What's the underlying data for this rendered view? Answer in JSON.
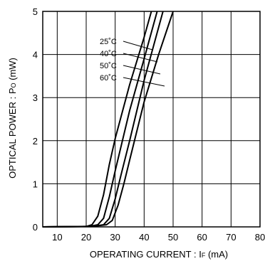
{
  "chart_data": {
    "type": "line",
    "xlabel_main": "OPERATING CURRENT : I",
    "xlabel_sub": "F",
    "xlabel_unit": " (mA)",
    "ylabel_main": "OPTICAL  POWER : P",
    "ylabel_sub": "O",
    "ylabel_unit": " (mW)",
    "xlim": [
      5,
      80
    ],
    "ylim": [
      0,
      5
    ],
    "x_ticks": [
      "10",
      "20",
      "30",
      "40",
      "50",
      "60",
      "70",
      "80"
    ],
    "y_ticks": [
      "0",
      "1",
      "2",
      "3",
      "4",
      "5"
    ],
    "grid": true,
    "series": [
      {
        "name": "25˚C",
        "points": [
          [
            5,
            0
          ],
          [
            20,
            0.01
          ],
          [
            22,
            0.05
          ],
          [
            24,
            0.25
          ],
          [
            26,
            0.75
          ],
          [
            28,
            1.45
          ],
          [
            30,
            2.05
          ],
          [
            35,
            3.3
          ],
          [
            40,
            4.4
          ],
          [
            42.5,
            5.0
          ]
        ]
      },
      {
        "name": "40˚C",
        "points": [
          [
            5,
            0
          ],
          [
            21,
            0.01
          ],
          [
            24,
            0.05
          ],
          [
            26,
            0.2
          ],
          [
            28,
            0.7
          ],
          [
            30,
            1.3
          ],
          [
            35,
            2.7
          ],
          [
            40,
            3.9
          ],
          [
            44.5,
            5.0
          ]
        ]
      },
      {
        "name": "50˚C",
        "points": [
          [
            5,
            0
          ],
          [
            22,
            0.01
          ],
          [
            26,
            0.05
          ],
          [
            28,
            0.2
          ],
          [
            30,
            0.65
          ],
          [
            32,
            1.2
          ],
          [
            35,
            2.0
          ],
          [
            40,
            3.4
          ],
          [
            46.5,
            5.0
          ]
        ]
      },
      {
        "name": "60˚C",
        "points": [
          [
            5,
            0
          ],
          [
            22,
            0.01
          ],
          [
            27,
            0.05
          ],
          [
            29,
            0.15
          ],
          [
            31,
            0.5
          ],
          [
            33,
            1.0
          ],
          [
            35,
            1.55
          ],
          [
            40,
            2.9
          ],
          [
            45,
            4.0
          ],
          [
            50,
            5.0
          ]
        ]
      }
    ]
  }
}
